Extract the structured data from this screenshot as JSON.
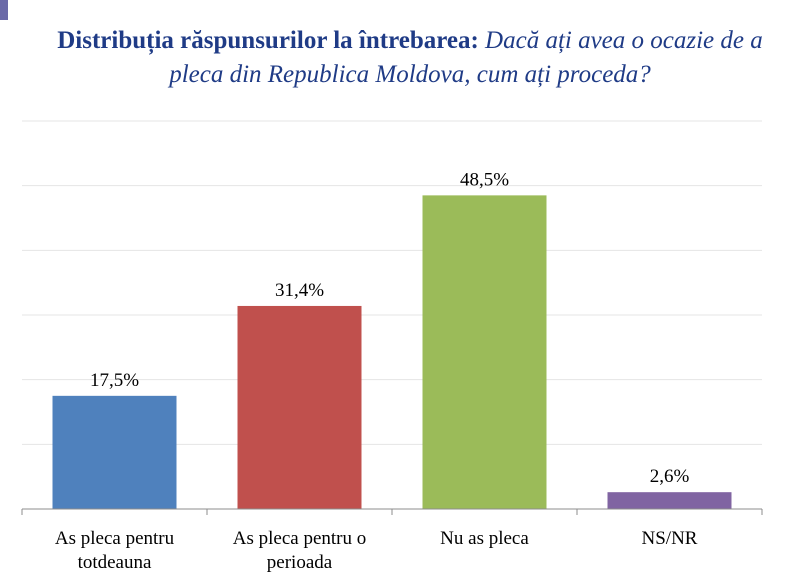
{
  "title": {
    "bold": "Distribuția răspunsurilor la întrebarea:",
    "italic": "Dacă ați avea o ocazie de a pleca din Republica Moldova, cum ați proceda?"
  },
  "chart_data": {
    "type": "bar",
    "categories": [
      [
        "As pleca pentru",
        "totdeauna"
      ],
      [
        "As pleca pentru o",
        "perioada"
      ],
      [
        "Nu as pleca"
      ],
      [
        "NS/NR"
      ]
    ],
    "values": [
      17.5,
      31.4,
      48.5,
      2.6
    ],
    "data_labels": [
      "17,5%",
      "31,4%",
      "48,5%",
      "2,6%"
    ],
    "colors": [
      "#4f81bd",
      "#c0504d",
      "#9bbb59",
      "#8064a2"
    ],
    "ylim": [
      0,
      60
    ],
    "grid": true,
    "legend": "none"
  }
}
